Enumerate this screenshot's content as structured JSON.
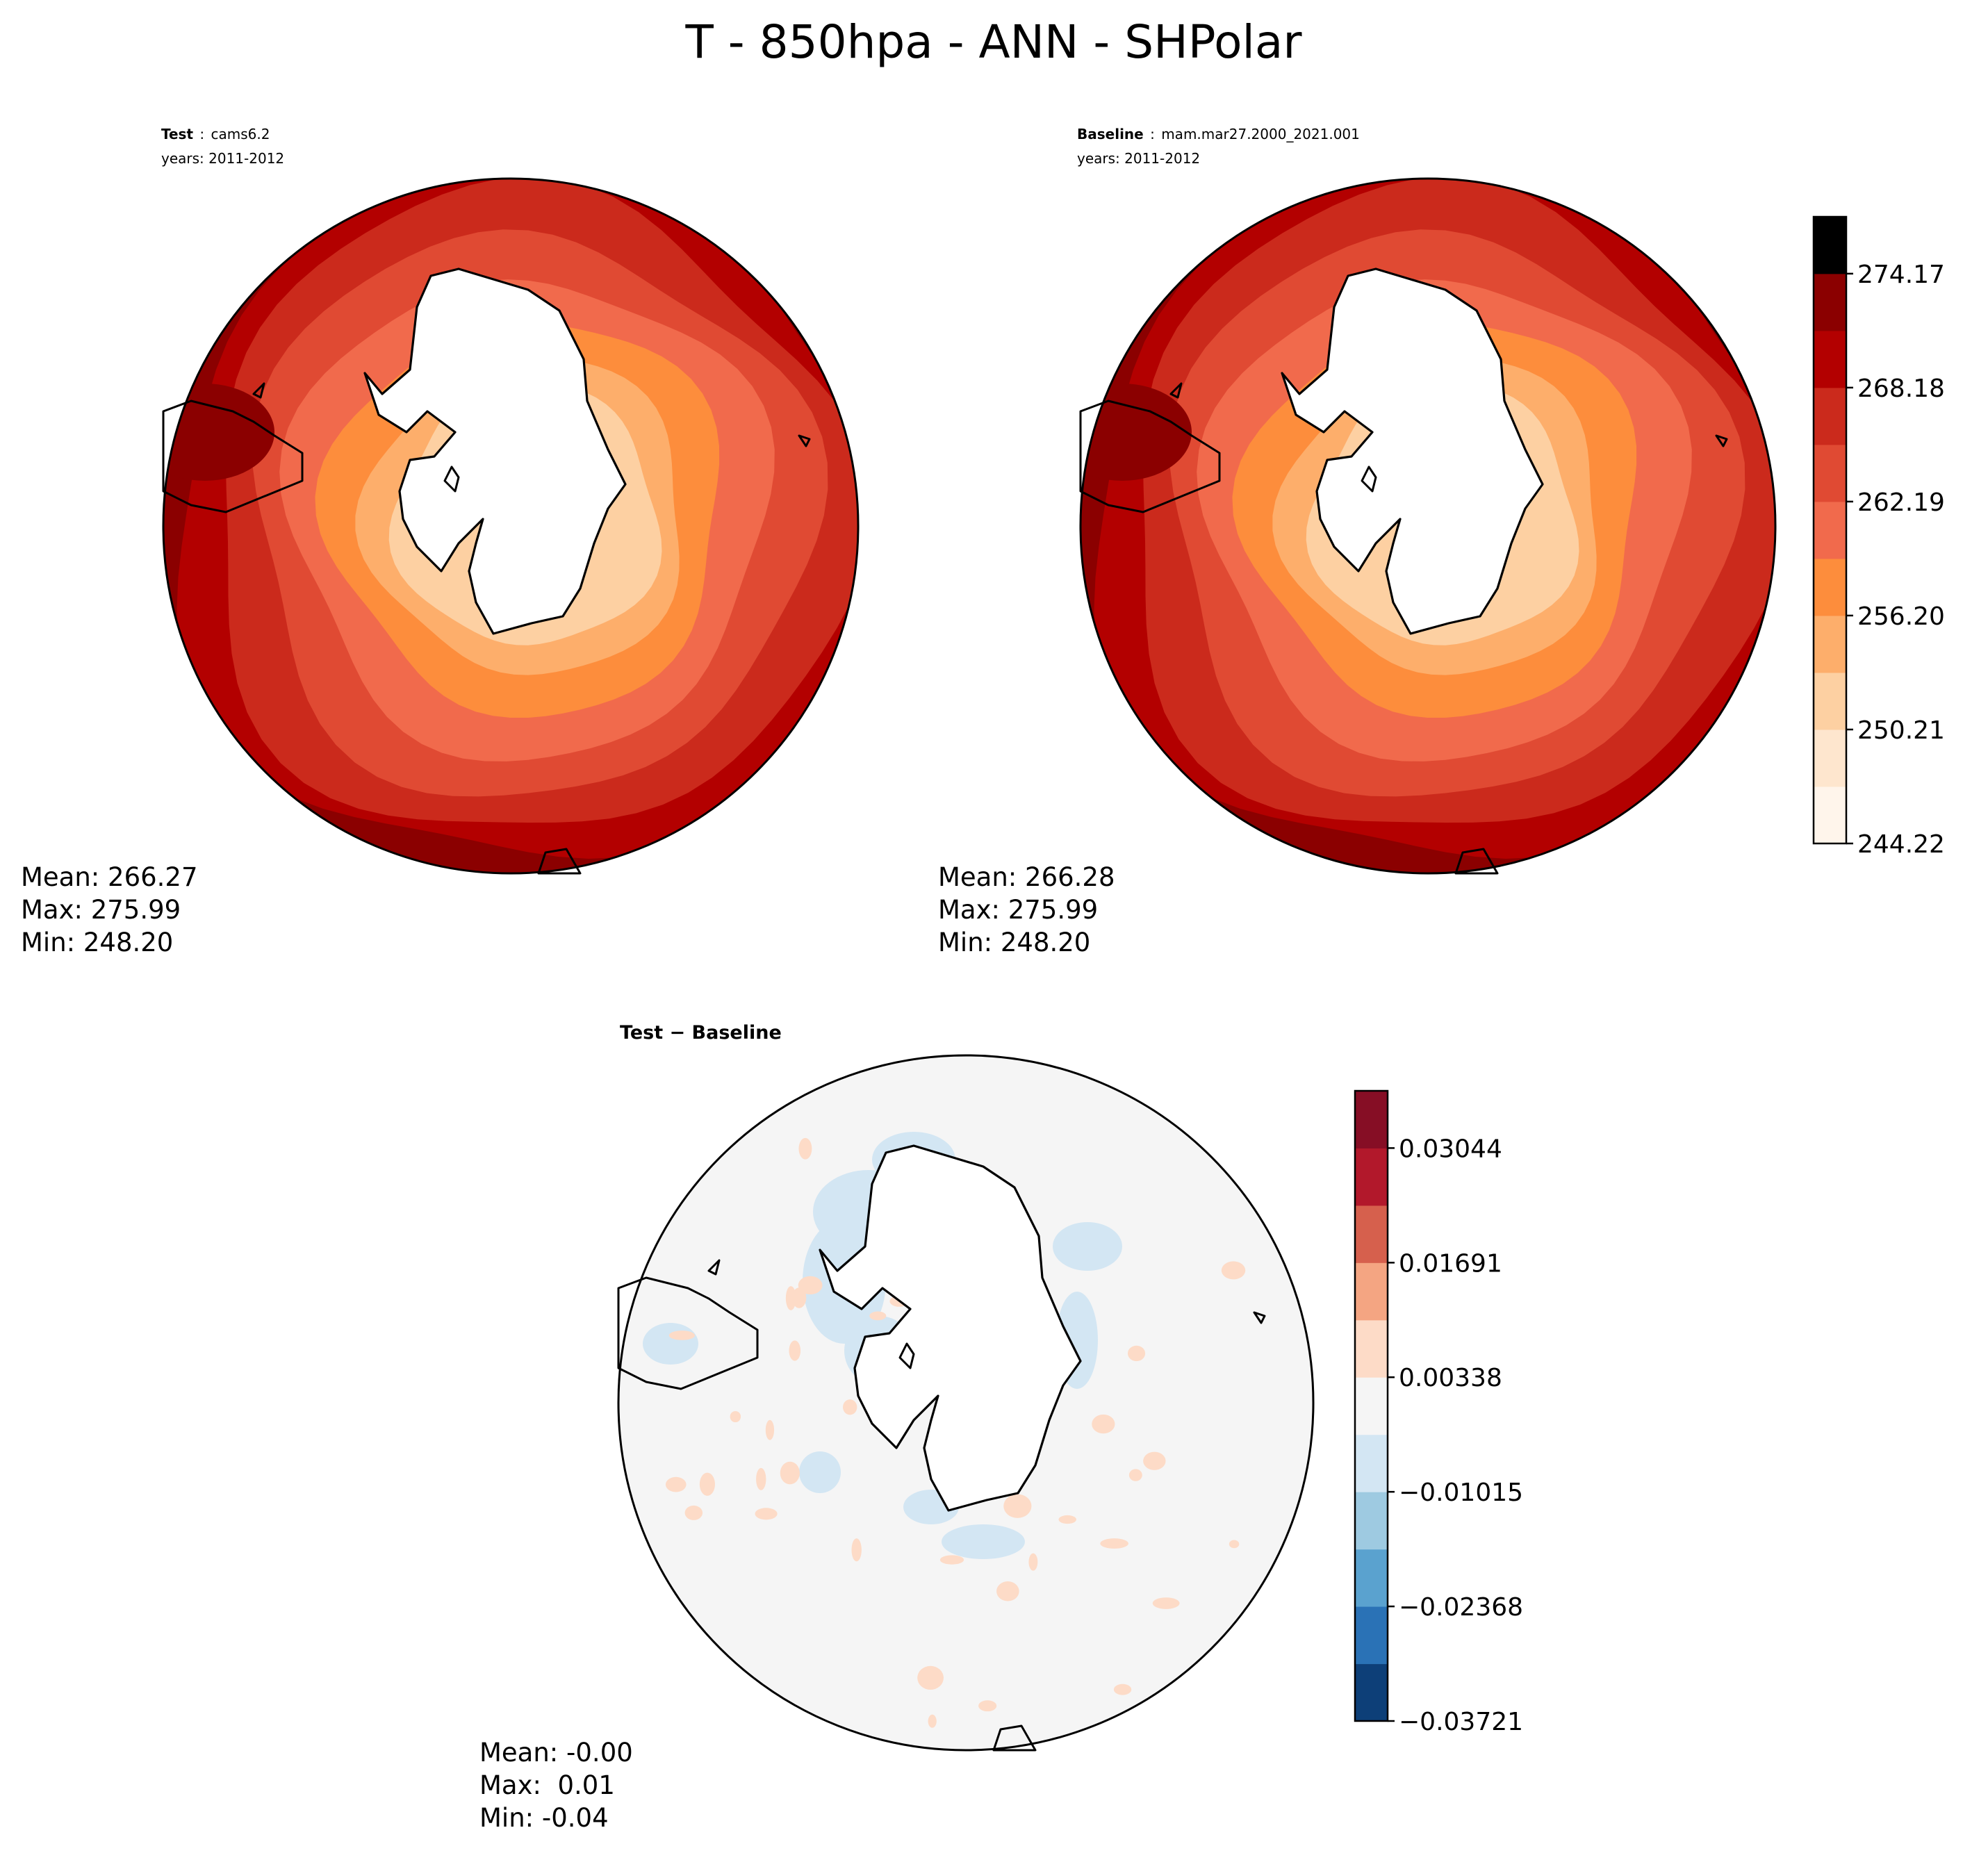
{
  "figure": {
    "title": "T - 850hpa - ANN - SHPolar"
  },
  "colors": {
    "land": "#ffffff",
    "coast": "#000000",
    "abs_levels": [
      "#fff5eb",
      "#fee6ce",
      "#fdd0a2",
      "#fdae6b",
      "#fd8d3c",
      "#f16a4c",
      "#e04a33",
      "#cb2a1c",
      "#b30000",
      "#8b0000"
    ],
    "diff_levels": [
      "#0d3f78",
      "#2a72b6",
      "#5aa2cf",
      "#9ecae1",
      "#d3e6f3",
      "#f5f5f5",
      "#fddbc7",
      "#f4a582",
      "#d6604d",
      "#b2182b",
      "#860e25"
    ]
  },
  "chart_data": [
    {
      "id": "test",
      "type": "heatmap",
      "projection": "south-polar-stereographic",
      "label_bold": "Test",
      "label_sep": ":",
      "label_value": "cams6.2",
      "years": "years: 2011-2012",
      "stats": {
        "mean": "Mean: 266.27",
        "max": "Max: 275.99",
        "min": "Min: 248.20"
      },
      "field_bands": [
        246.7,
        252.7,
        258.7,
        264.7,
        270.7,
        275.2
      ],
      "band_colors": [
        "#fdd0a2",
        "#fdae6b",
        "#fd8d3c",
        "#f16a4c",
        "#e04a33",
        "#cb2a1c",
        "#b30000",
        "#8b0000"
      ]
    },
    {
      "id": "baseline",
      "type": "heatmap",
      "projection": "south-polar-stereographic",
      "label_bold": "Baseline",
      "label_sep": ":",
      "label_value": "mam.mar27.2000_2021.001",
      "years": "years: 2011-2012",
      "stats": {
        "mean": "Mean: 266.28",
        "max": "Max: 275.99",
        "min": "Min: 248.20"
      },
      "colorbar": {
        "range": [
          244.22,
          277.16
        ],
        "levels": [
          244.22,
          247.215,
          250.21,
          253.205,
          256.2,
          259.195,
          262.19,
          265.185,
          268.18,
          271.175,
          274.17,
          277.16
        ],
        "ticks": [
          244.22,
          250.21,
          256.2,
          262.19,
          268.18,
          274.17
        ],
        "tick_labels": [
          "244.22",
          "250.21",
          "256.20",
          "262.19",
          "268.18",
          "274.17"
        ]
      }
    },
    {
      "id": "diff",
      "type": "heatmap",
      "projection": "south-polar-stereographic",
      "label": "Test − Baseline",
      "stats": {
        "mean": "Mean: -0.00",
        "max": "Max:  0.01",
        "min": "Min: -0.04"
      },
      "colorbar": {
        "range": [
          -0.03721,
          0.0372
        ],
        "levels": [
          -0.03721,
          -0.03045,
          -0.02368,
          -0.01692,
          -0.01015,
          -0.00339,
          0.00338,
          0.01014,
          0.01691,
          0.02367,
          0.03044,
          0.0372
        ],
        "ticks": [
          -0.03721,
          -0.02368,
          -0.01015,
          0.00338,
          0.01691,
          0.03044
        ],
        "tick_labels": [
          "−0.03721",
          "−0.02368",
          "−0.01015",
          "0.00338",
          "0.01691",
          "0.03044"
        ]
      }
    }
  ]
}
